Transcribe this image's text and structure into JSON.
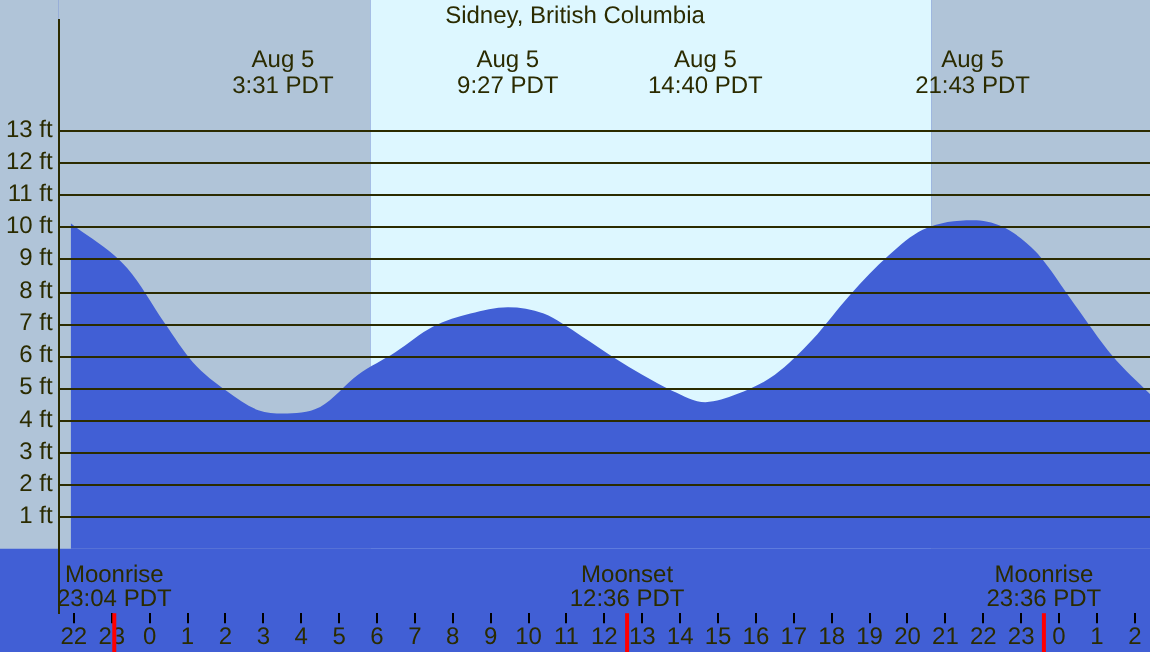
{
  "chart_data": {
    "type": "area",
    "title": "Sidney, British Columbia",
    "x": [
      "--08-04T21:55",
      "--08-04T23:25",
      "--08-05T00:24",
      "--08-05T01:08",
      "--08-05T02:02",
      "--08-05T02:52",
      "--08-05T03:31",
      "--08-05T04:30",
      "--08-05T05:30",
      "--08-05T06:29",
      "--08-05T07:29",
      "--08-05T08:28",
      "--08-05T09:27",
      "--08-05T10:24",
      "--08-05T11:24",
      "--08-05T12:18",
      "--08-05T13:00",
      "--08-05T13:48",
      "--08-05T14:40",
      "--08-05T15:30",
      "--08-05T16:30",
      "--08-05T17:30",
      "--08-05T18:30",
      "--08-05T19:30",
      "--08-05T20:24",
      "--08-05T21:43",
      "--08-05T22:30",
      "--08-05T23:24",
      "--08-06T00:24",
      "--08-06T01:24",
      "--08-06T02:24"
    ],
    "series": [
      {
        "color": "#415fd5",
        "values": [
          10.1,
          8.7,
          7.0,
          5.8,
          4.9,
          4.3,
          4.2,
          4.4,
          5.4,
          6.1,
          6.9,
          7.3,
          7.5,
          7.3,
          6.6,
          5.9,
          5.4,
          4.9,
          4.55,
          4.8,
          5.4,
          6.5,
          7.9,
          9.1,
          9.9,
          10.2,
          10.0,
          9.2,
          7.6,
          6.0,
          4.8
        ]
      }
    ],
    "xlim": [
      "--08-04T21:36",
      "--08-06T02:24"
    ],
    "xticks": [
      {
        "value": "--08-04T22:00",
        "label": "22"
      },
      {
        "value": "--08-04T23:00",
        "label": "23"
      },
      {
        "value": "--08-05T00:00",
        "label": "0"
      },
      {
        "value": "--08-05T01:00",
        "label": "1"
      },
      {
        "value": "--08-05T02:00",
        "label": "2"
      },
      {
        "value": "--08-05T03:00",
        "label": "3"
      },
      {
        "value": "--08-05T04:00",
        "label": "4"
      },
      {
        "value": "--08-05T05:00",
        "label": "5"
      },
      {
        "value": "--08-05T06:00",
        "label": "6"
      },
      {
        "value": "--08-05T07:00",
        "label": "7"
      },
      {
        "value": "--08-05T08:00",
        "label": "8"
      },
      {
        "value": "--08-05T09:00",
        "label": "9"
      },
      {
        "value": "--08-05T10:00",
        "label": "10"
      },
      {
        "value": "--08-05T11:00",
        "label": "11"
      },
      {
        "value": "--08-05T12:00",
        "label": "12"
      },
      {
        "value": "--08-05T13:00",
        "label": "13"
      },
      {
        "value": "--08-05T14:00",
        "label": "14"
      },
      {
        "value": "--08-05T15:00",
        "label": "15"
      },
      {
        "value": "--08-05T16:00",
        "label": "16"
      },
      {
        "value": "--08-05T17:00",
        "label": "17"
      },
      {
        "value": "--08-05T18:00",
        "label": "18"
      },
      {
        "value": "--08-05T19:00",
        "label": "19"
      },
      {
        "value": "--08-05T20:00",
        "label": "20"
      },
      {
        "value": "--08-05T21:00",
        "label": "21"
      },
      {
        "value": "--08-05T22:00",
        "label": "22"
      },
      {
        "value": "--08-05T23:00",
        "label": "23"
      },
      {
        "value": "--08-06T00:00",
        "label": "0"
      },
      {
        "value": "--08-06T01:00",
        "label": "1"
      },
      {
        "value": "--08-06T02:00",
        "label": "2"
      }
    ],
    "ylim": [
      -2,
      16.4
    ],
    "yticks": [
      {
        "value": 1,
        "label": "1 ft"
      },
      {
        "value": 2,
        "label": "2 ft"
      },
      {
        "value": 3,
        "label": "3 ft"
      },
      {
        "value": 4,
        "label": "4 ft"
      },
      {
        "value": 5,
        "label": "5 ft"
      },
      {
        "value": 6,
        "label": "6 ft"
      },
      {
        "value": 7,
        "label": "7 ft"
      },
      {
        "value": 8,
        "label": "8 ft"
      },
      {
        "value": 9,
        "label": "9 ft"
      },
      {
        "value": 10,
        "label": "10 ft"
      },
      {
        "value": 11,
        "label": "11 ft"
      },
      {
        "value": 12,
        "label": "12 ft"
      },
      {
        "value": 13,
        "label": "13 ft"
      }
    ],
    "grid": "y",
    "legend": false,
    "bands": [
      {
        "axis": "x",
        "from": "--08-04T21:36",
        "to": "--08-05T05:50",
        "color": "#b0c4d8"
      },
      {
        "axis": "x",
        "from": "--08-05T05:50",
        "to": "--08-05T20:38",
        "color": "#ddf7ff"
      },
      {
        "axis": "x",
        "from": "--08-05T20:38",
        "to": "--08-06T02:24",
        "color": "#b0c4d8"
      }
    ],
    "ref_lines": [
      {
        "axis": "x",
        "value": "--08-04T23:04",
        "label": "Moonrise\n23:04 PDT",
        "color": "#ff0000"
      },
      {
        "axis": "x",
        "value": "--08-05T12:36",
        "label": "Moonset\n12:36 PDT",
        "color": "#ff0000"
      },
      {
        "axis": "x",
        "value": "--08-05T23:36",
        "label": "Moonrise\n23:36 PDT",
        "color": "#ff0000"
      }
    ],
    "annotations": [
      "Aug 5\n3:31 PDT",
      "Aug 5\n9:27 PDT",
      "Aug 5\n14:40 PDT",
      "Aug 5\n21:43 PDT"
    ]
  }
}
